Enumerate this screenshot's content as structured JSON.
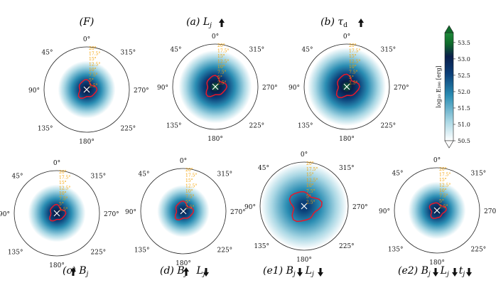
{
  "chart_data": {
    "type": "heatmap",
    "projection": "polar",
    "colormap": "white-blue-green",
    "colors": {
      "low": "#ffffff",
      "mid_light": "#a9d7e4",
      "mid": "#2a8db3",
      "dark": "#0b3f78",
      "darkest": "#0a1e4a",
      "high": "#0f6b2b",
      "peak": "#1e8a3a",
      "contour": "#e8182a",
      "radial_labels": "#f5a100",
      "marker": "#ffffff"
    },
    "angle_ticks": [
      "0°",
      "45°",
      "90°",
      "135°",
      "180°",
      "225°",
      "270°",
      "315°"
    ],
    "radial_ticks": [
      "20°",
      "17.5°",
      "15°",
      "12.5°",
      "10°",
      "7.5°",
      "5°",
      "2.5°"
    ],
    "colorbar": {
      "label": "log₁₀ E₃₉₀ [erg]",
      "ticks": [
        53.5,
        53.0,
        52.5,
        52.0,
        51.5,
        51.0,
        50.5
      ],
      "range": [
        50.5,
        53.8
      ]
    },
    "panels": [
      {
        "id": "F",
        "title": "(F)",
        "arrows": "",
        "center_value": 53.3,
        "contour_radius_deg": 4.0,
        "spread": 0.55
      },
      {
        "id": "a",
        "title": "(a) Lj",
        "arrows": "↑",
        "center_value": 53.5,
        "contour_radius_deg": 4.5,
        "spread": 0.7
      },
      {
        "id": "b",
        "title": "(b) τd",
        "arrows": "↑",
        "center_value": 53.5,
        "contour_radius_deg": 5.0,
        "spread": 0.75
      },
      {
        "id": "c",
        "title": "(c) Bj",
        "arrows": "↑",
        "center_value": 53.3,
        "contour_radius_deg": 3.5,
        "spread": 0.55
      },
      {
        "id": "d",
        "title": "(d) Bj Lj",
        "arrows": "↑↓",
        "center_value": 53.1,
        "contour_radius_deg": 4.0,
        "spread": 0.5
      },
      {
        "id": "e1",
        "title": "(e1) Bj Lj",
        "arrows": "↓↓",
        "center_value": 52.8,
        "contour_radius_deg": 6.5,
        "spread": 0.8
      },
      {
        "id": "e2",
        "title": "(e2) Bj Lj tj",
        "arrows": "↓↓↓",
        "center_value": 53.2,
        "contour_radius_deg": 3.5,
        "spread": 0.55
      }
    ]
  },
  "labels": {
    "F": "(F)",
    "a_prefix": "(a) ",
    "a_sym": "L",
    "a_sub": "j",
    "b_prefix": "(b) ",
    "b_sym": "τ",
    "b_sub": "d",
    "c_prefix": "(c) ",
    "c_sym": "B",
    "c_sub": "j",
    "d_prefix": "(d) ",
    "d_sym1": "B",
    "d_sub1": "j",
    "d_sym2": "L",
    "d_sub2": "j",
    "e1_prefix": "(e1) ",
    "e1_sym1": "B",
    "e1_sub1": "j",
    "e1_sym2": "L",
    "e1_sub2": "j",
    "e2_prefix": "(e2) ",
    "e2_sym1": "B",
    "e2_sub1": "j",
    "e2_sym2": "L",
    "e2_sub2": "j",
    "e2_sym3": "t",
    "e2_sub3": "j"
  }
}
